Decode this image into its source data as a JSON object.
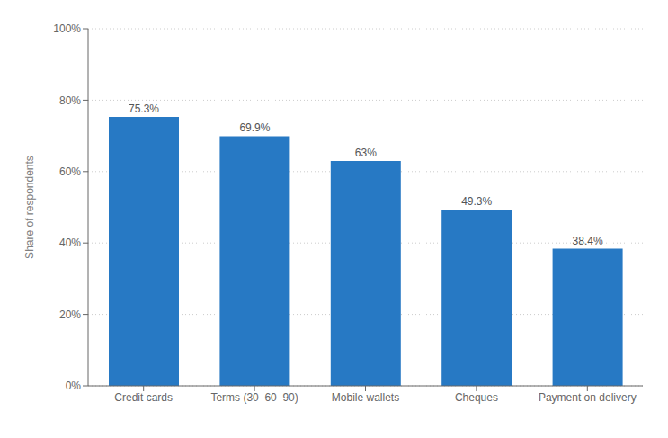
{
  "chart_data": {
    "type": "bar",
    "categories": [
      "Credit cards",
      "Terms (30–60–90)",
      "Mobile wallets",
      "Cheques",
      "Payment on delivery"
    ],
    "values": [
      75.3,
      69.9,
      63.0,
      49.3,
      38.4
    ],
    "value_labels": [
      "75.3%",
      "69.9%",
      "63%",
      "49.3%",
      "38.4%"
    ],
    "data_labels": true,
    "color": "#2779c4",
    "ylabel": "Share of respondents",
    "ylim": [
      0,
      100
    ],
    "yticks": [
      {
        "value": 0,
        "label": "0%"
      },
      {
        "value": 20,
        "label": "20%"
      },
      {
        "value": 40,
        "label": "40%"
      },
      {
        "value": 60,
        "label": "60%"
      },
      {
        "value": 80,
        "label": "80%"
      },
      {
        "value": 100,
        "label": "100%"
      }
    ],
    "grid": true
  }
}
